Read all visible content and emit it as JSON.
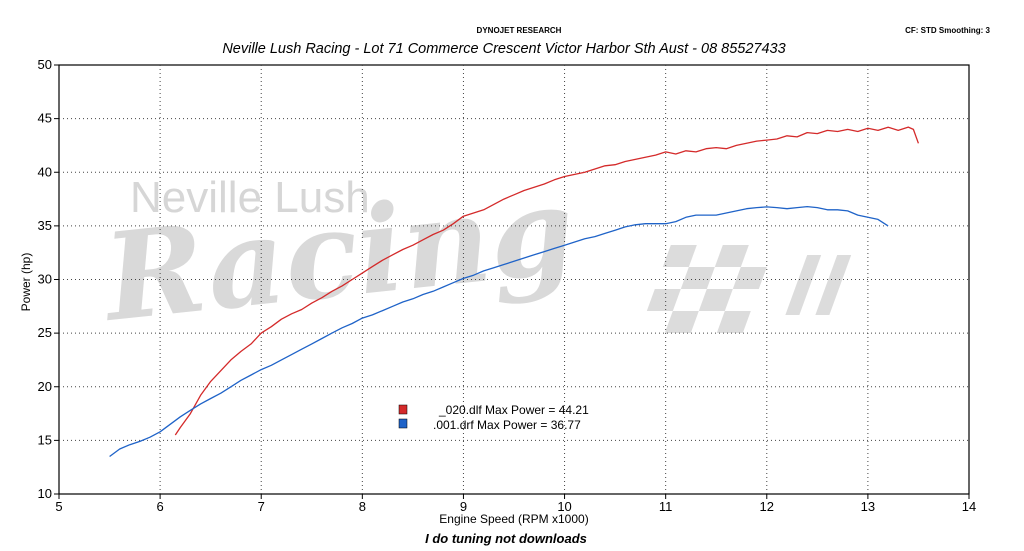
{
  "header": {
    "left_title": "DYNOJET RESEARCH",
    "right_info": "CF: STD  Smoothing: 3",
    "shop": "Neville Lush Racing  - Lot 71 Commerce Crescent  Victor Harbor Sth Aust  - 08 85527433"
  },
  "watermark": {
    "line1": "Neville Lush",
    "line2": "Racing"
  },
  "footer": "I do tuning not downloads",
  "colors": {
    "red": "#d42a2a",
    "blue": "#1f63c8"
  },
  "chart_data": {
    "type": "line",
    "title": "",
    "xlabel": "Engine Speed (RPM x1000)",
    "ylabel": "Power (hp)",
    "xlim": [
      5,
      14
    ],
    "ylim": [
      10,
      50
    ],
    "xticks": [
      5,
      6,
      7,
      8,
      9,
      10,
      11,
      12,
      13,
      14
    ],
    "yticks": [
      10,
      15,
      20,
      25,
      30,
      35,
      40,
      45,
      50
    ],
    "grid": true,
    "legend_position": "center-left",
    "series": [
      {
        "name": "_020.dlf Max Power = 44.21",
        "color": "#d42a2a",
        "points": [
          [
            6.15,
            15.5
          ],
          [
            6.2,
            16.2
          ],
          [
            6.3,
            17.5
          ],
          [
            6.4,
            19.2
          ],
          [
            6.5,
            20.5
          ],
          [
            6.6,
            21.5
          ],
          [
            6.7,
            22.5
          ],
          [
            6.8,
            23.3
          ],
          [
            6.9,
            24.0
          ],
          [
            7.0,
            25.0
          ],
          [
            7.1,
            25.6
          ],
          [
            7.2,
            26.3
          ],
          [
            7.3,
            26.8
          ],
          [
            7.4,
            27.2
          ],
          [
            7.5,
            27.8
          ],
          [
            7.6,
            28.3
          ],
          [
            7.7,
            28.9
          ],
          [
            7.8,
            29.4
          ],
          [
            7.9,
            30.0
          ],
          [
            8.0,
            30.6
          ],
          [
            8.1,
            31.2
          ],
          [
            8.2,
            31.8
          ],
          [
            8.3,
            32.3
          ],
          [
            8.4,
            32.8
          ],
          [
            8.5,
            33.2
          ],
          [
            8.6,
            33.7
          ],
          [
            8.7,
            34.2
          ],
          [
            8.8,
            34.6
          ],
          [
            8.9,
            35.2
          ],
          [
            9.0,
            35.9
          ],
          [
            9.1,
            36.2
          ],
          [
            9.2,
            36.5
          ],
          [
            9.3,
            37.0
          ],
          [
            9.4,
            37.5
          ],
          [
            9.5,
            37.9
          ],
          [
            9.6,
            38.3
          ],
          [
            9.7,
            38.6
          ],
          [
            9.8,
            38.9
          ],
          [
            9.9,
            39.3
          ],
          [
            10.0,
            39.6
          ],
          [
            10.1,
            39.8
          ],
          [
            10.2,
            40.0
          ],
          [
            10.3,
            40.3
          ],
          [
            10.4,
            40.6
          ],
          [
            10.5,
            40.7
          ],
          [
            10.6,
            41.0
          ],
          [
            10.7,
            41.2
          ],
          [
            10.8,
            41.4
          ],
          [
            10.9,
            41.6
          ],
          [
            11.0,
            41.9
          ],
          [
            11.1,
            41.7
          ],
          [
            11.2,
            42.0
          ],
          [
            11.3,
            41.9
          ],
          [
            11.4,
            42.2
          ],
          [
            11.5,
            42.3
          ],
          [
            11.6,
            42.2
          ],
          [
            11.7,
            42.5
          ],
          [
            11.8,
            42.7
          ],
          [
            11.9,
            42.9
          ],
          [
            12.0,
            43.0
          ],
          [
            12.1,
            43.1
          ],
          [
            12.2,
            43.4
          ],
          [
            12.3,
            43.3
          ],
          [
            12.4,
            43.7
          ],
          [
            12.5,
            43.6
          ],
          [
            12.6,
            43.9
          ],
          [
            12.7,
            43.8
          ],
          [
            12.8,
            44.0
          ],
          [
            12.9,
            43.8
          ],
          [
            13.0,
            44.1
          ],
          [
            13.1,
            43.9
          ],
          [
            13.2,
            44.2
          ],
          [
            13.3,
            43.9
          ],
          [
            13.4,
            44.21
          ],
          [
            13.45,
            44.0
          ],
          [
            13.5,
            42.7
          ]
        ]
      },
      {
        "name": ".001.drf Max Power = 36.77",
        "color": "#1f63c8",
        "points": [
          [
            5.5,
            13.5
          ],
          [
            5.6,
            14.2
          ],
          [
            5.7,
            14.6
          ],
          [
            5.8,
            14.9
          ],
          [
            5.9,
            15.3
          ],
          [
            6.0,
            15.8
          ],
          [
            6.1,
            16.5
          ],
          [
            6.2,
            17.2
          ],
          [
            6.3,
            17.8
          ],
          [
            6.4,
            18.4
          ],
          [
            6.5,
            18.9
          ],
          [
            6.6,
            19.4
          ],
          [
            6.7,
            20.0
          ],
          [
            6.8,
            20.6
          ],
          [
            6.9,
            21.1
          ],
          [
            7.0,
            21.6
          ],
          [
            7.1,
            22.0
          ],
          [
            7.2,
            22.5
          ],
          [
            7.3,
            23.0
          ],
          [
            7.4,
            23.5
          ],
          [
            7.5,
            24.0
          ],
          [
            7.6,
            24.5
          ],
          [
            7.7,
            25.0
          ],
          [
            7.8,
            25.5
          ],
          [
            7.9,
            25.9
          ],
          [
            8.0,
            26.4
          ],
          [
            8.1,
            26.7
          ],
          [
            8.2,
            27.1
          ],
          [
            8.3,
            27.5
          ],
          [
            8.4,
            27.9
          ],
          [
            8.5,
            28.2
          ],
          [
            8.6,
            28.6
          ],
          [
            8.7,
            28.9
          ],
          [
            8.8,
            29.3
          ],
          [
            8.9,
            29.7
          ],
          [
            9.0,
            30.1
          ],
          [
            9.1,
            30.4
          ],
          [
            9.2,
            30.8
          ],
          [
            9.3,
            31.1
          ],
          [
            9.4,
            31.4
          ],
          [
            9.5,
            31.7
          ],
          [
            9.6,
            32.0
          ],
          [
            9.7,
            32.3
          ],
          [
            9.8,
            32.6
          ],
          [
            9.9,
            32.9
          ],
          [
            10.0,
            33.2
          ],
          [
            10.1,
            33.5
          ],
          [
            10.2,
            33.8
          ],
          [
            10.3,
            34.0
          ],
          [
            10.4,
            34.3
          ],
          [
            10.5,
            34.6
          ],
          [
            10.6,
            34.9
          ],
          [
            10.7,
            35.1
          ],
          [
            10.8,
            35.2
          ],
          [
            10.9,
            35.2
          ],
          [
            11.0,
            35.2
          ],
          [
            11.1,
            35.4
          ],
          [
            11.2,
            35.8
          ],
          [
            11.3,
            36.0
          ],
          [
            11.4,
            36.0
          ],
          [
            11.5,
            36.0
          ],
          [
            11.6,
            36.2
          ],
          [
            11.7,
            36.4
          ],
          [
            11.8,
            36.6
          ],
          [
            11.9,
            36.7
          ],
          [
            12.0,
            36.77
          ],
          [
            12.1,
            36.7
          ],
          [
            12.2,
            36.6
          ],
          [
            12.3,
            36.7
          ],
          [
            12.4,
            36.8
          ],
          [
            12.5,
            36.7
          ],
          [
            12.6,
            36.5
          ],
          [
            12.7,
            36.5
          ],
          [
            12.8,
            36.4
          ],
          [
            12.9,
            36.0
          ],
          [
            13.0,
            35.8
          ],
          [
            13.1,
            35.6
          ],
          [
            13.2,
            35.0
          ]
        ]
      }
    ]
  }
}
